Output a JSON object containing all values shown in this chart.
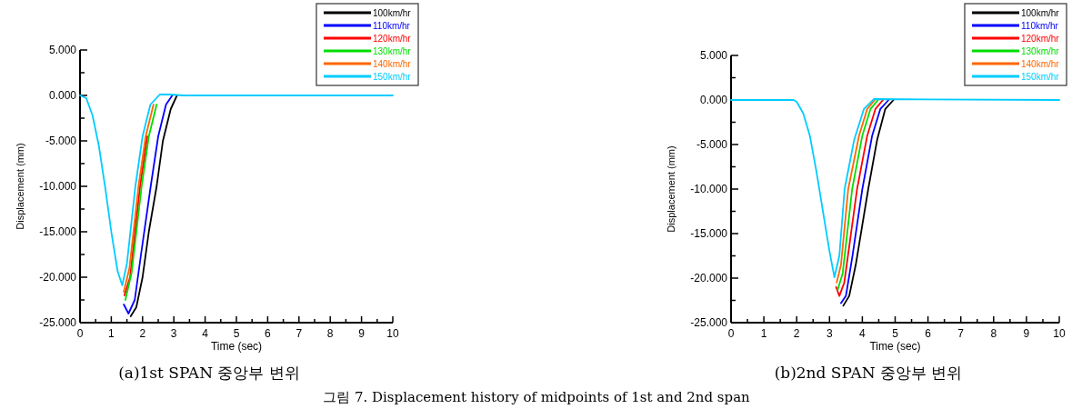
{
  "chart_data": [
    {
      "type": "line",
      "title": "(a)1st SPAN 중앙부 변위",
      "xlabel": "Time (sec)",
      "ylabel": "Displacement (mm)",
      "xlim": [
        0,
        10
      ],
      "ylim": [
        -25,
        5
      ],
      "xticks": [
        0,
        1,
        2,
        3,
        4,
        5,
        6,
        7,
        8,
        9,
        10
      ],
      "yticks": [
        {
          "value": -25,
          "label": "-25.000"
        },
        {
          "value": -20,
          "label": "-20.000"
        },
        {
          "value": -15,
          "label": "-15.000"
        },
        {
          "value": -10,
          "label": "-10.000"
        },
        {
          "value": -5,
          "label": "-5.000"
        },
        {
          "value": 0,
          "label": "0.000"
        },
        {
          "value": 5,
          "label": "5.000"
        }
      ],
      "legend": "top right",
      "annotations": [
        "그림 7. Displacement history of midpoints of 1st and 2nd span"
      ],
      "series": [
        {
          "name": "100km/hr",
          "color": "#000000",
          "x": [
            1.62,
            1.8,
            2.0,
            2.2,
            2.45,
            2.65,
            2.9,
            3.1
          ],
          "values": [
            -24.3,
            -23.3,
            -20,
            -15,
            -10,
            -5,
            -1.5,
            0
          ]
        },
        {
          "name": "110km/hr",
          "color": "#0000ff",
          "x": [
            1.4,
            1.55,
            1.75,
            1.95,
            2.26,
            2.5,
            2.75,
            2.95
          ],
          "values": [
            -23,
            -24,
            -22.5,
            -17.5,
            -10,
            -4.5,
            -1,
            0
          ]
        },
        {
          "name": "120km/hr",
          "color": "#ff0000",
          "x": [
            1.42,
            1.6,
            1.92,
            2.15
          ],
          "values": [
            -22,
            -20,
            -10,
            -4.5
          ]
        },
        {
          "name": "130km/hr",
          "color": "#00dd00",
          "x": [
            1.45,
            1.65,
            1.97,
            2.2,
            2.45
          ],
          "values": [
            -22.5,
            -19.5,
            -10,
            -4.5,
            -1
          ]
        },
        {
          "name": "140km/hr",
          "color": "#ff6600",
          "x": [
            1.4,
            1.58,
            1.87,
            2.1,
            2.35
          ],
          "values": [
            -21.6,
            -19,
            -10,
            -4.5,
            -1
          ]
        },
        {
          "name": "150km/hr",
          "color": "#00ccff",
          "x": [
            0,
            0.2,
            0.4,
            0.6,
            0.8,
            1.0,
            1.2,
            1.35,
            1.5,
            1.77,
            2.0,
            2.25,
            2.55,
            2.9,
            3.3,
            10
          ],
          "values": [
            0,
            -0.3,
            -2.2,
            -5.5,
            -10,
            -15,
            -19.3,
            -20.9,
            -18.5,
            -10,
            -4.5,
            -1,
            0.1,
            0.1,
            0,
            0
          ]
        }
      ]
    },
    {
      "type": "line",
      "title": "(b)2nd SPAN 중앙부 변위",
      "xlabel": "Time (sec)",
      "ylabel": "Displacement (mm)",
      "xlim": [
        0,
        10
      ],
      "ylim": [
        -25,
        5
      ],
      "xticks": [
        0,
        1,
        2,
        3,
        4,
        5,
        6,
        7,
        8,
        9,
        10
      ],
      "yticks": [
        {
          "value": -25,
          "label": "-25.000"
        },
        {
          "value": -20,
          "label": "-20.000"
        },
        {
          "value": -15,
          "label": "-15.000"
        },
        {
          "value": -10,
          "label": "-10.000"
        },
        {
          "value": -5,
          "label": "-5.000"
        },
        {
          "value": 0,
          "label": "0.000"
        },
        {
          "value": 5,
          "label": "5.000"
        }
      ],
      "legend": "top right",
      "series": [
        {
          "name": "100km/hr",
          "color": "#000000",
          "x": [
            3.42,
            3.6,
            3.8,
            4.18,
            4.45,
            4.7,
            4.95
          ],
          "values": [
            -23.1,
            -22,
            -18.5,
            -10,
            -4.5,
            -1,
            0
          ]
        },
        {
          "name": "110km/hr",
          "color": "#0000ff",
          "x": [
            3.35,
            3.5,
            3.7,
            4.0,
            4.3,
            4.55,
            4.8
          ],
          "values": [
            -22.8,
            -22,
            -17.5,
            -10,
            -4,
            -1,
            0
          ]
        },
        {
          "name": "120km/hr",
          "color": "#ff0000",
          "x": [
            3.2,
            3.3,
            3.45,
            3.84,
            4.15,
            4.4,
            4.65
          ],
          "values": [
            -21,
            -22,
            -20.5,
            -10,
            -4,
            -1,
            0.1
          ]
        },
        {
          "name": "130km/hr",
          "color": "#00dd00",
          "x": [
            3.25,
            3.4,
            3.69,
            4.0,
            4.25,
            4.5
          ],
          "values": [
            -21.3,
            -19.5,
            -10,
            -4,
            -1,
            0.1
          ]
        },
        {
          "name": "140km/hr",
          "color": "#ff6600",
          "x": [
            3.22,
            3.35,
            3.57,
            3.9,
            4.15,
            4.4
          ],
          "values": [
            -20.5,
            -18.5,
            -10,
            -4,
            -1,
            0.1
          ]
        },
        {
          "name": "150km/hr",
          "color": "#00ccff",
          "x": [
            0,
            1.9,
            2.0,
            2.2,
            2.4,
            2.6,
            2.8,
            3.0,
            3.15,
            3.3,
            3.46,
            3.75,
            4.05,
            4.35,
            10
          ],
          "values": [
            0,
            0,
            -0.2,
            -1.5,
            -4,
            -8,
            -12.5,
            -17,
            -19.9,
            -17.5,
            -10,
            -4.5,
            -1,
            0.1,
            0
          ]
        }
      ]
    }
  ]
}
